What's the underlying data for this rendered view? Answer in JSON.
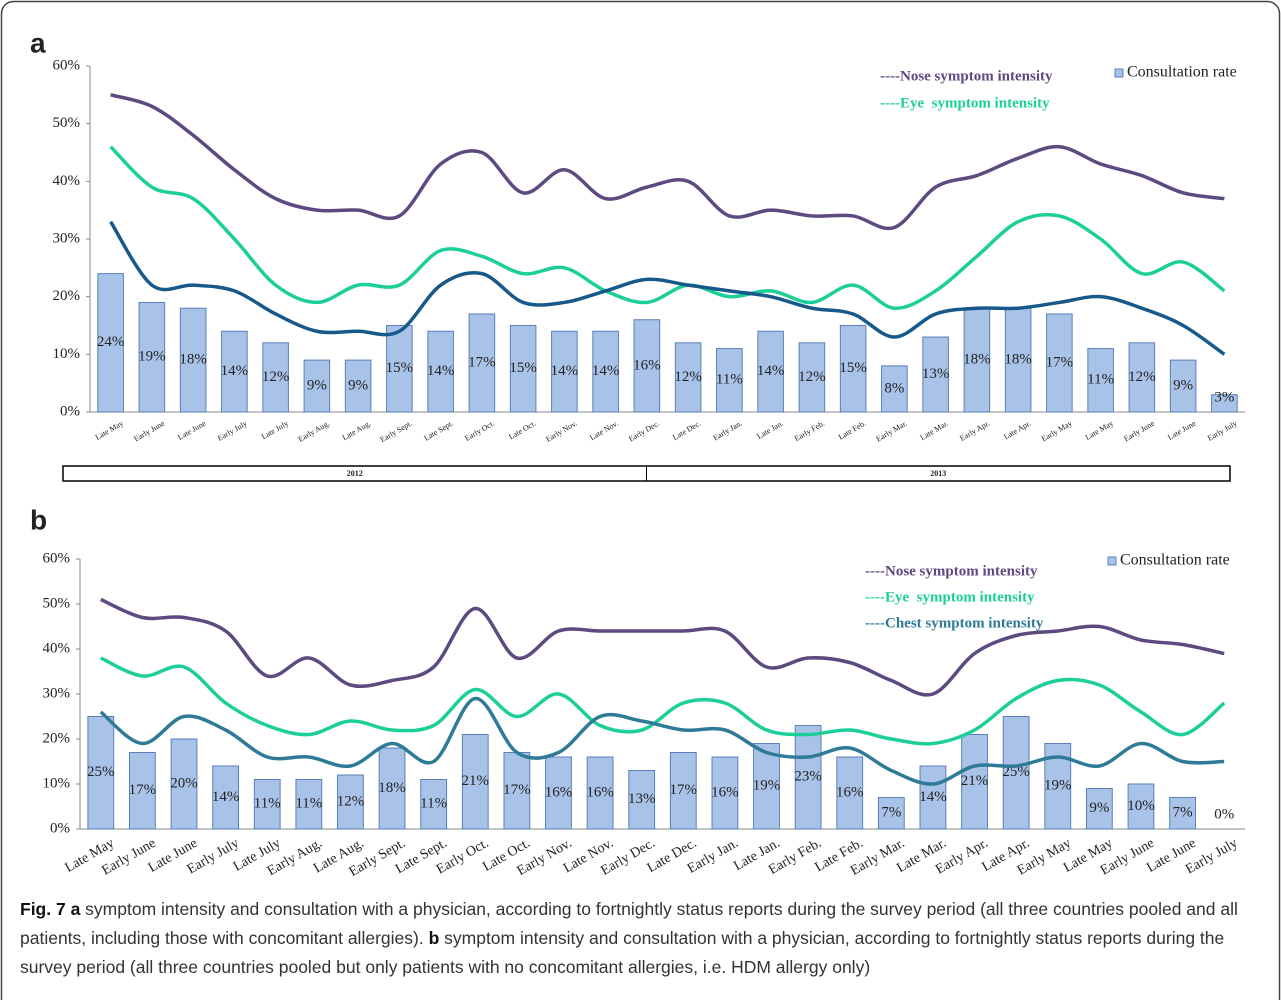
{
  "chart_data": [
    {
      "type": "combo",
      "panel": "a",
      "categories": [
        "Late May",
        "Early June",
        "Late June",
        "Early July",
        "Late July",
        "Early Aug.",
        "Late Aug.",
        "Early Sept.",
        "Late Sept.",
        "Early Oct.",
        "Late Oct.",
        "Early Nov.",
        "Late Nov.",
        "Early Dec.",
        "Late Dec.",
        "Early Jan.",
        "Late Jan.",
        "Early Feb.",
        "Late Feb.",
        "Early Mar.",
        "Late Mar.",
        "Early Apr.",
        "Late Apr.",
        "Early May",
        "Late May",
        "Early June",
        "Late June",
        "Early July"
      ],
      "groups": [
        "2012",
        "2013"
      ],
      "ylim": [
        0,
        60
      ],
      "yticks": [
        {
          "value": 0,
          "label": "0%"
        },
        {
          "value": 10,
          "label": "10%"
        },
        {
          "value": 20,
          "label": "20%"
        },
        {
          "value": 30,
          "label": "30%"
        },
        {
          "value": 40,
          "label": "40%"
        },
        {
          "value": 50,
          "label": "50%"
        },
        {
          "value": 60,
          "label": "60%"
        }
      ],
      "legend": "upper right",
      "series": [
        {
          "name": "Consultation rate",
          "type": "bar",
          "color": "#a9c3e8",
          "values": [
            24,
            19,
            18,
            14,
            12,
            9,
            9,
            15,
            14,
            17,
            15,
            14,
            14,
            16,
            12,
            11,
            14,
            12,
            15,
            8,
            13,
            18,
            18,
            17,
            11,
            12,
            9,
            3
          ],
          "value_labels": [
            "24%",
            "19%",
            "18%",
            "14%",
            "12%",
            "9%",
            "9%",
            "15%",
            "14%",
            "17%",
            "15%",
            "14%",
            "14%",
            "16%",
            "12%",
            "11%",
            "14%",
            "12%",
            "15%",
            "8%",
            "13%",
            "18%",
            "18%",
            "17%",
            "11%",
            "12%",
            "9%",
            "3%"
          ]
        },
        {
          "name": "----Nose symptom intensity",
          "type": "line",
          "color": "#5c4a80",
          "values": [
            55,
            53,
            48,
            42,
            37,
            35,
            35,
            34,
            43,
            45,
            38,
            42,
            37,
            39,
            40,
            34,
            35,
            34,
            34,
            32,
            39,
            41,
            44,
            46,
            43,
            41,
            38,
            37
          ]
        },
        {
          "name": "----Eye  symptom intensity",
          "type": "line",
          "color": "#1ccf98",
          "values": [
            46,
            39,
            37,
            30,
            22,
            19,
            22,
            22,
            28,
            27,
            24,
            25,
            21,
            19,
            22,
            20,
            21,
            19,
            22,
            18,
            21,
            27,
            33,
            34,
            30,
            24,
            26,
            21
          ]
        },
        {
          "type": "line",
          "color": "#17598a",
          "values": [
            33,
            22,
            22,
            21,
            17,
            14,
            14,
            14,
            22,
            24,
            19,
            19,
            21,
            23,
            22,
            21,
            20,
            18,
            17,
            13,
            17,
            18,
            18,
            19,
            20,
            18,
            15,
            10
          ]
        }
      ]
    },
    {
      "type": "combo",
      "panel": "b",
      "categories": [
        "Late May",
        "Early June",
        "Late June",
        "Early July",
        "Late July",
        "Early Aug.",
        "Late Aug.",
        "Early Sept.",
        "Late Sept.",
        "Early Oct.",
        "Late Oct.",
        "Early Nov.",
        "Late Nov.",
        "Early Dec.",
        "Late Dec.",
        "Early Jan.",
        "Late Jan.",
        "Early Feb.",
        "Late Feb.",
        "Early Mar.",
        "Late Mar.",
        "Early Apr.",
        "Late Apr.",
        "Early May",
        "Late May",
        "Early June",
        "Late June",
        "Early July"
      ],
      "ylim": [
        0,
        60
      ],
      "yticks": [
        {
          "value": 0,
          "label": "0%"
        },
        {
          "value": 10,
          "label": "10%"
        },
        {
          "value": 20,
          "label": "20%"
        },
        {
          "value": 30,
          "label": "30%"
        },
        {
          "value": 40,
          "label": "40%"
        },
        {
          "value": 50,
          "label": "50%"
        },
        {
          "value": 60,
          "label": "60%"
        }
      ],
      "legend": "upper right",
      "series": [
        {
          "name": "Consultation rate",
          "type": "bar",
          "color": "#a9c3e8",
          "values": [
            25,
            17,
            20,
            14,
            11,
            11,
            12,
            18,
            11,
            21,
            17,
            16,
            16,
            13,
            17,
            16,
            19,
            23,
            16,
            7,
            14,
            21,
            25,
            19,
            9,
            10,
            7,
            0
          ],
          "value_labels": [
            "25%",
            "17%",
            "20%",
            "14%",
            "11%",
            "11%",
            "12%",
            "18%",
            "11%",
            "21%",
            "17%",
            "16%",
            "16%",
            "13%",
            "17%",
            "16%",
            "19%",
            "23%",
            "16%",
            "7%",
            "14%",
            "21%",
            "25%",
            "19%",
            "9%",
            "10%",
            "7%",
            "0%"
          ]
        },
        {
          "name": "----Nose symptom intensity",
          "type": "line",
          "color": "#5c4a80",
          "values": [
            51,
            47,
            47,
            44,
            34,
            38,
            32,
            33,
            36,
            49,
            38,
            44,
            44,
            44,
            44,
            44,
            36,
            38,
            37,
            33,
            30,
            39,
            43,
            44,
            45,
            42,
            41,
            39
          ]
        },
        {
          "name": "----Eye  symptom intensity",
          "type": "line",
          "color": "#1ccf98",
          "values": [
            38,
            34,
            36,
            28,
            23,
            21,
            24,
            22,
            23,
            31,
            25,
            30,
            23,
            22,
            28,
            28,
            22,
            21,
            22,
            20,
            19,
            22,
            29,
            33,
            32,
            26,
            21,
            28
          ]
        },
        {
          "name": "----Chest symptom intensity",
          "type": "line",
          "color": "#2f7b97",
          "values": [
            26,
            19,
            25,
            22,
            16,
            16,
            14,
            19,
            15,
            29,
            17,
            17,
            25,
            24,
            22,
            22,
            17,
            16,
            18,
            13,
            10,
            14,
            14,
            16,
            14,
            19,
            15,
            15
          ]
        }
      ]
    }
  ],
  "caption": {
    "fig": "Fig. 7",
    "a_label": "a",
    "a_text": " symptom intensity and consultation with a physician, according to fortnightly status reports during the survey period (all three countries pooled and all patients, including those with concomitant allergies). ",
    "b_label": "b",
    "b_text": " symptom intensity and consultation with a physician, according to fortnightly status reports during the survey period (all three countries pooled but only patients with no concomitant allergies, i.e. HDM allergy only)"
  }
}
